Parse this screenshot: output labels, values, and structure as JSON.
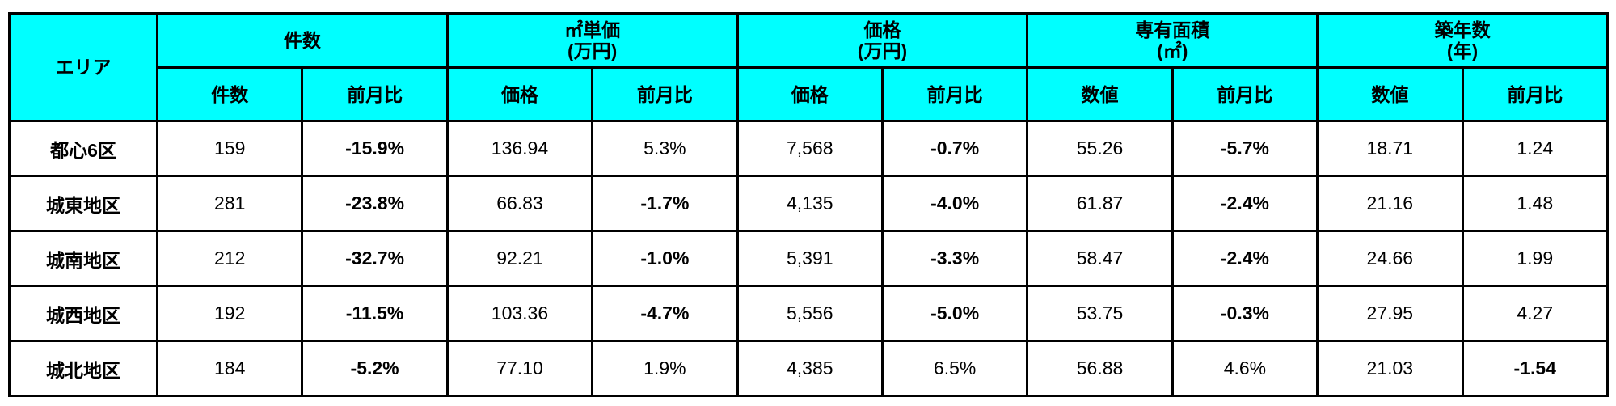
{
  "header": {
    "area": "エリア",
    "groups": [
      {
        "line1": "件数",
        "line2": ""
      },
      {
        "line1": "㎡単価",
        "line2": "(万円)"
      },
      {
        "line1": "価格",
        "line2": "(万円)"
      },
      {
        "line1": "専有面積",
        "line2": "(㎡)"
      },
      {
        "line1": "築年数",
        "line2": "(年)"
      }
    ],
    "sub": [
      "件数",
      "前月比",
      "価格",
      "前月比",
      "価格",
      "前月比",
      "数値",
      "前月比",
      "数値",
      "前月比"
    ]
  },
  "colors": {
    "header_bg": "#00ffff",
    "negative": "#ff0000",
    "border": "#000000"
  },
  "rows": [
    {
      "area": "都心6区",
      "cells": [
        {
          "v": "159",
          "neg": false
        },
        {
          "v": "-15.9%",
          "neg": true
        },
        {
          "v": "136.94",
          "neg": false
        },
        {
          "v": "5.3%",
          "neg": false
        },
        {
          "v": "7,568",
          "neg": false
        },
        {
          "v": "-0.7%",
          "neg": true
        },
        {
          "v": "55.26",
          "neg": false
        },
        {
          "v": "-5.7%",
          "neg": true
        },
        {
          "v": "18.71",
          "neg": false
        },
        {
          "v": "1.24",
          "neg": false
        }
      ]
    },
    {
      "area": "城東地区",
      "cells": [
        {
          "v": "281",
          "neg": false
        },
        {
          "v": "-23.8%",
          "neg": true
        },
        {
          "v": "66.83",
          "neg": false
        },
        {
          "v": "-1.7%",
          "neg": true
        },
        {
          "v": "4,135",
          "neg": false
        },
        {
          "v": "-4.0%",
          "neg": true
        },
        {
          "v": "61.87",
          "neg": false
        },
        {
          "v": "-2.4%",
          "neg": true
        },
        {
          "v": "21.16",
          "neg": false
        },
        {
          "v": "1.48",
          "neg": false
        }
      ]
    },
    {
      "area": "城南地区",
      "cells": [
        {
          "v": "212",
          "neg": false
        },
        {
          "v": "-32.7%",
          "neg": true
        },
        {
          "v": "92.21",
          "neg": false
        },
        {
          "v": "-1.0%",
          "neg": true
        },
        {
          "v": "5,391",
          "neg": false
        },
        {
          "v": "-3.3%",
          "neg": true
        },
        {
          "v": "58.47",
          "neg": false
        },
        {
          "v": "-2.4%",
          "neg": true
        },
        {
          "v": "24.66",
          "neg": false
        },
        {
          "v": "1.99",
          "neg": false
        }
      ]
    },
    {
      "area": "城西地区",
      "cells": [
        {
          "v": "192",
          "neg": false
        },
        {
          "v": "-11.5%",
          "neg": true
        },
        {
          "v": "103.36",
          "neg": false
        },
        {
          "v": "-4.7%",
          "neg": true
        },
        {
          "v": "5,556",
          "neg": false
        },
        {
          "v": "-5.0%",
          "neg": true
        },
        {
          "v": "53.75",
          "neg": false
        },
        {
          "v": "-0.3%",
          "neg": true
        },
        {
          "v": "27.95",
          "neg": false
        },
        {
          "v": "4.27",
          "neg": false
        }
      ]
    },
    {
      "area": "城北地区",
      "cells": [
        {
          "v": "184",
          "neg": false
        },
        {
          "v": "-5.2%",
          "neg": true
        },
        {
          "v": "77.10",
          "neg": false
        },
        {
          "v": "1.9%",
          "neg": false
        },
        {
          "v": "4,385",
          "neg": false
        },
        {
          "v": "6.5%",
          "neg": false
        },
        {
          "v": "56.88",
          "neg": false
        },
        {
          "v": "4.6%",
          "neg": false
        },
        {
          "v": "21.03",
          "neg": false
        },
        {
          "v": "-1.54",
          "neg": true
        }
      ]
    }
  ]
}
